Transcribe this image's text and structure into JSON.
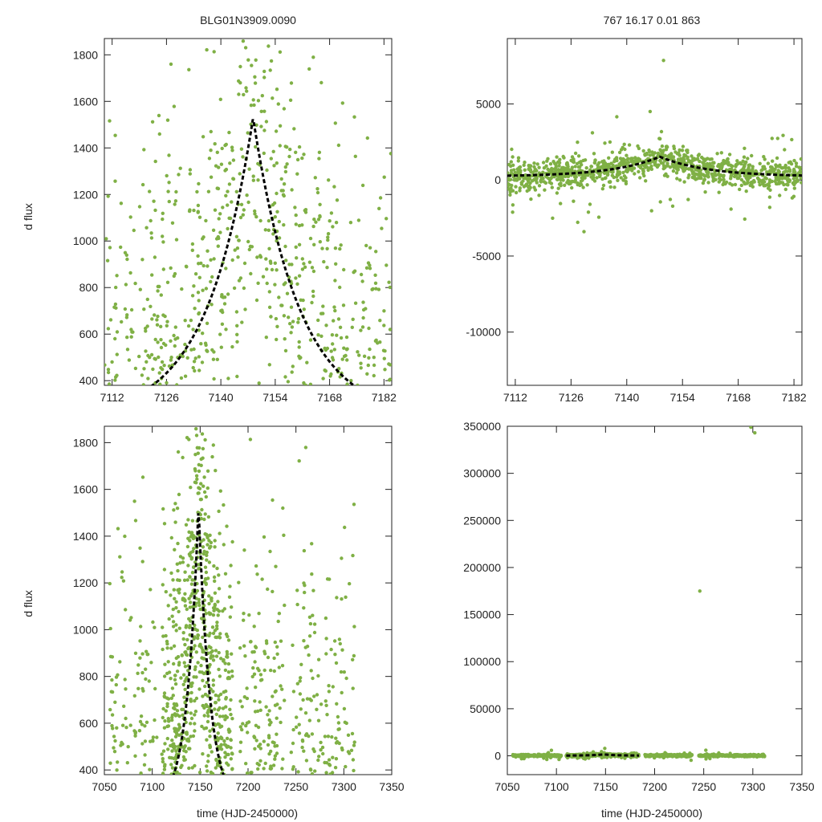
{
  "figure": {
    "title_left": "BLG01N3909.0090",
    "title_right": "767  16.17  0.01  863",
    "ylabel": "d flux",
    "xlabel": "time (HJD-2450000)",
    "point_color": "#7fb045",
    "fit_color": "#000000"
  },
  "chart_data": [
    {
      "type": "scatter",
      "name": "top-left",
      "xlim": [
        7110,
        7184
      ],
      "ylim": [
        380,
        1870
      ],
      "xticks": [
        7112,
        7126,
        7140,
        7154,
        7168,
        7182
      ],
      "yticks": [
        400,
        600,
        800,
        1000,
        1200,
        1400,
        1600,
        1800
      ],
      "xlabel": "",
      "ylabel": "d flux",
      "peak_time": 7148.3,
      "peak_value": 1530,
      "fit_line": {
        "t0": 7148.3,
        "baseline": 230,
        "amplitude": 1300,
        "tau": 12
      }
    },
    {
      "type": "scatter",
      "name": "top-right",
      "xlim": [
        7110,
        7184
      ],
      "ylim": [
        -13500,
        9300
      ],
      "xticks": [
        7112,
        7126,
        7140,
        7154,
        7168,
        7182
      ],
      "yticks": [
        -10000,
        -5000,
        0,
        5000
      ],
      "xlabel": "",
      "ylabel": "",
      "fit_line": {
        "t0": 7148.3,
        "baseline": 230,
        "amplitude": 1300,
        "tau": 12
      }
    },
    {
      "type": "scatter",
      "name": "bottom-left",
      "xlim": [
        7050,
        7350
      ],
      "ylim": [
        380,
        1870
      ],
      "xticks": [
        7050,
        7100,
        7150,
        7200,
        7250,
        7300,
        7350
      ],
      "yticks": [
        400,
        600,
        800,
        1000,
        1200,
        1400,
        1600,
        1800
      ],
      "xlabel": "time (HJD-2450000)",
      "ylabel": "d flux",
      "fit_line": {
        "t0": 7148.3,
        "baseline": 230,
        "amplitude": 1300,
        "tau": 12
      }
    },
    {
      "type": "scatter",
      "name": "bottom-right",
      "xlim": [
        7050,
        7350
      ],
      "ylim": [
        -20000,
        350000
      ],
      "xticks": [
        7050,
        7100,
        7150,
        7200,
        7250,
        7300,
        7350
      ],
      "yticks": [
        0,
        50000,
        100000,
        150000,
        200000,
        250000,
        300000,
        350000
      ],
      "xlabel": "time (HJD-2450000)",
      "ylabel": "",
      "outliers": [
        [
          7246,
          175000
        ],
        [
          7298,
          349000
        ],
        [
          7302,
          343000
        ]
      ],
      "fit_line": {
        "t0": 7148.3,
        "baseline": 230,
        "amplitude": 1300,
        "tau": 12,
        "range": [
          7110,
          7184
        ]
      }
    }
  ]
}
